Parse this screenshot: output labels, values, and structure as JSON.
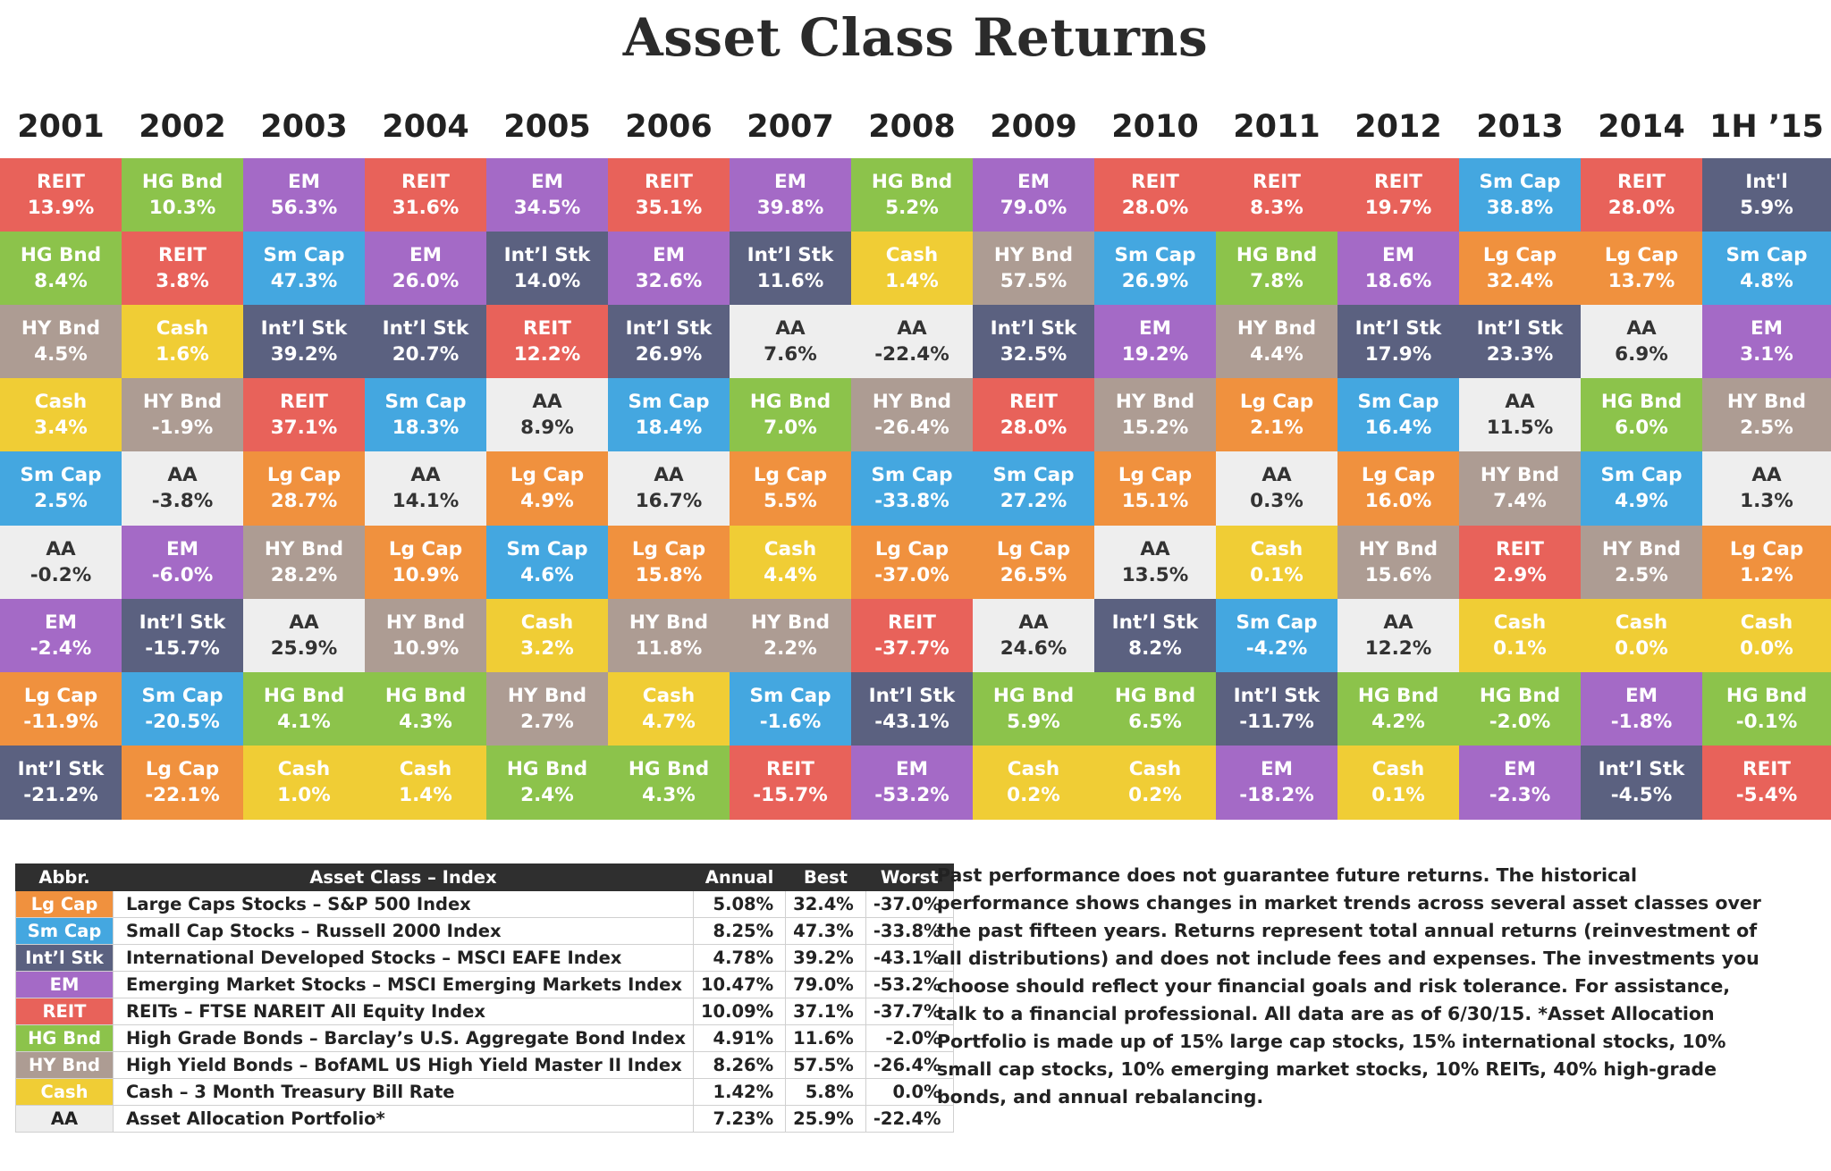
{
  "title": "Asset Class Returns",
  "years": [
    "2001",
    "2002",
    "2003",
    "2004",
    "2005",
    "2006",
    "2007",
    "2008",
    "2009",
    "2010",
    "2011",
    "2012",
    "2013",
    "2014",
    "1H ’15"
  ],
  "colors": {
    "REIT": "#e8625a",
    "HG Bnd": "#8cc34b",
    "EM": "#a46ac6",
    "Int'l": "#5b6180",
    "Int’l Stk": "#5b6180",
    "Sm Cap": "#44a7e0",
    "HY Bnd": "#ad9c93",
    "Cash": "#f0cd35",
    "AA": "#eeeeee",
    "Lg Cap": "#f0913e"
  },
  "chart_data": {
    "type": "table",
    "title": "Asset Class Returns",
    "columns": [
      {
        "year": "2001",
        "cells": [
          {
            "asset": "REIT",
            "value": "13.9%"
          },
          {
            "asset": "HG Bnd",
            "value": "8.4%"
          },
          {
            "asset": "HY Bnd",
            "value": "4.5%"
          },
          {
            "asset": "Cash",
            "value": "3.4%"
          },
          {
            "asset": "Sm Cap",
            "value": "2.5%"
          },
          {
            "asset": "AA",
            "value": "-0.2%"
          },
          {
            "asset": "EM",
            "value": "-2.4%"
          },
          {
            "asset": "Lg Cap",
            "value": "-11.9%"
          },
          {
            "asset": "Int’l Stk",
            "value": "-21.2%"
          }
        ]
      },
      {
        "year": "2002",
        "cells": [
          {
            "asset": "HG Bnd",
            "value": "10.3%"
          },
          {
            "asset": "REIT",
            "value": "3.8%"
          },
          {
            "asset": "Cash",
            "value": "1.6%"
          },
          {
            "asset": "HY Bnd",
            "value": "-1.9%"
          },
          {
            "asset": "AA",
            "value": "-3.8%"
          },
          {
            "asset": "EM",
            "value": "-6.0%"
          },
          {
            "asset": "Int’l Stk",
            "value": "-15.7%"
          },
          {
            "asset": "Sm Cap",
            "value": "-20.5%"
          },
          {
            "asset": "Lg Cap",
            "value": "-22.1%"
          }
        ]
      },
      {
        "year": "2003",
        "cells": [
          {
            "asset": "EM",
            "value": "56.3%"
          },
          {
            "asset": "Sm Cap",
            "value": "47.3%"
          },
          {
            "asset": "Int’l Stk",
            "value": "39.2%"
          },
          {
            "asset": "REIT",
            "value": "37.1%"
          },
          {
            "asset": "Lg Cap",
            "value": "28.7%"
          },
          {
            "asset": "HY Bnd",
            "value": "28.2%"
          },
          {
            "asset": "AA",
            "value": "25.9%"
          },
          {
            "asset": "HG Bnd",
            "value": "4.1%"
          },
          {
            "asset": "Cash",
            "value": "1.0%"
          }
        ]
      },
      {
        "year": "2004",
        "cells": [
          {
            "asset": "REIT",
            "value": "31.6%"
          },
          {
            "asset": "EM",
            "value": "26.0%"
          },
          {
            "asset": "Int’l Stk",
            "value": "20.7%"
          },
          {
            "asset": "Sm Cap",
            "value": "18.3%"
          },
          {
            "asset": "AA",
            "value": "14.1%"
          },
          {
            "asset": "Lg Cap",
            "value": "10.9%"
          },
          {
            "asset": "HY Bnd",
            "value": "10.9%"
          },
          {
            "asset": "HG Bnd",
            "value": "4.3%"
          },
          {
            "asset": "Cash",
            "value": "1.4%"
          }
        ]
      },
      {
        "year": "2005",
        "cells": [
          {
            "asset": "EM",
            "value": "34.5%"
          },
          {
            "asset": "Int’l Stk",
            "value": "14.0%"
          },
          {
            "asset": "REIT",
            "value": "12.2%"
          },
          {
            "asset": "AA",
            "value": "8.9%"
          },
          {
            "asset": "Lg Cap",
            "value": "4.9%"
          },
          {
            "asset": "Sm Cap",
            "value": "4.6%"
          },
          {
            "asset": "Cash",
            "value": "3.2%"
          },
          {
            "asset": "HY Bnd",
            "value": "2.7%"
          },
          {
            "asset": "HG Bnd",
            "value": "2.4%"
          }
        ]
      },
      {
        "year": "2006",
        "cells": [
          {
            "asset": "REIT",
            "value": "35.1%"
          },
          {
            "asset": "EM",
            "value": "32.6%"
          },
          {
            "asset": "Int’l Stk",
            "value": "26.9%"
          },
          {
            "asset": "Sm Cap",
            "value": "18.4%"
          },
          {
            "asset": "AA",
            "value": "16.7%"
          },
          {
            "asset": "Lg Cap",
            "value": "15.8%"
          },
          {
            "asset": "HY Bnd",
            "value": "11.8%"
          },
          {
            "asset": "Cash",
            "value": "4.7%"
          },
          {
            "asset": "HG Bnd",
            "value": "4.3%"
          }
        ]
      },
      {
        "year": "2007",
        "cells": [
          {
            "asset": "EM",
            "value": "39.8%"
          },
          {
            "asset": "Int’l Stk",
            "value": "11.6%"
          },
          {
            "asset": "AA",
            "value": "7.6%"
          },
          {
            "asset": "HG Bnd",
            "value": "7.0%"
          },
          {
            "asset": "Lg Cap",
            "value": "5.5%"
          },
          {
            "asset": "Cash",
            "value": "4.4%"
          },
          {
            "asset": "HY Bnd",
            "value": "2.2%"
          },
          {
            "asset": "Sm Cap",
            "value": "-1.6%"
          },
          {
            "asset": "REIT",
            "value": "-15.7%"
          }
        ]
      },
      {
        "year": "2008",
        "cells": [
          {
            "asset": "HG Bnd",
            "value": "5.2%"
          },
          {
            "asset": "Cash",
            "value": "1.4%"
          },
          {
            "asset": "AA",
            "value": "-22.4%"
          },
          {
            "asset": "HY Bnd",
            "value": "-26.4%"
          },
          {
            "asset": "Sm Cap",
            "value": "-33.8%"
          },
          {
            "asset": "Lg Cap",
            "value": "-37.0%"
          },
          {
            "asset": "REIT",
            "value": "-37.7%"
          },
          {
            "asset": "Int’l Stk",
            "value": "-43.1%"
          },
          {
            "asset": "EM",
            "value": "-53.2%"
          }
        ]
      },
      {
        "year": "2009",
        "cells": [
          {
            "asset": "EM",
            "value": "79.0%"
          },
          {
            "asset": "HY Bnd",
            "value": "57.5%"
          },
          {
            "asset": "Int’l Stk",
            "value": "32.5%"
          },
          {
            "asset": "REIT",
            "value": "28.0%"
          },
          {
            "asset": "Sm Cap",
            "value": "27.2%"
          },
          {
            "asset": "Lg Cap",
            "value": "26.5%"
          },
          {
            "asset": "AA",
            "value": "24.6%"
          },
          {
            "asset": "HG Bnd",
            "value": "5.9%"
          },
          {
            "asset": "Cash",
            "value": "0.2%"
          }
        ]
      },
      {
        "year": "2010",
        "cells": [
          {
            "asset": "REIT",
            "value": "28.0%"
          },
          {
            "asset": "Sm Cap",
            "value": "26.9%"
          },
          {
            "asset": "EM",
            "value": "19.2%"
          },
          {
            "asset": "HY Bnd",
            "value": "15.2%"
          },
          {
            "asset": "Lg Cap",
            "value": "15.1%"
          },
          {
            "asset": "AA",
            "value": "13.5%"
          },
          {
            "asset": "Int’l Stk",
            "value": "8.2%"
          },
          {
            "asset": "HG Bnd",
            "value": "6.5%"
          },
          {
            "asset": "Cash",
            "value": "0.2%"
          }
        ]
      },
      {
        "year": "2011",
        "cells": [
          {
            "asset": "REIT",
            "value": "8.3%"
          },
          {
            "asset": "HG Bnd",
            "value": "7.8%"
          },
          {
            "asset": "HY Bnd",
            "value": "4.4%"
          },
          {
            "asset": "Lg Cap",
            "value": "2.1%"
          },
          {
            "asset": "AA",
            "value": "0.3%"
          },
          {
            "asset": "Cash",
            "value": "0.1%"
          },
          {
            "asset": "Sm Cap",
            "value": "-4.2%"
          },
          {
            "asset": "Int’l Stk",
            "value": "-11.7%"
          },
          {
            "asset": "EM",
            "value": "-18.2%"
          }
        ]
      },
      {
        "year": "2012",
        "cells": [
          {
            "asset": "REIT",
            "value": "19.7%"
          },
          {
            "asset": "EM",
            "value": "18.6%"
          },
          {
            "asset": "Int’l Stk",
            "value": "17.9%"
          },
          {
            "asset": "Sm Cap",
            "value": "16.4%"
          },
          {
            "asset": "Lg Cap",
            "value": "16.0%"
          },
          {
            "asset": "HY Bnd",
            "value": "15.6%"
          },
          {
            "asset": "AA",
            "value": "12.2%"
          },
          {
            "asset": "HG Bnd",
            "value": "4.2%"
          },
          {
            "asset": "Cash",
            "value": "0.1%"
          }
        ]
      },
      {
        "year": "2013",
        "cells": [
          {
            "asset": "Sm Cap",
            "value": "38.8%"
          },
          {
            "asset": "Lg Cap",
            "value": "32.4%"
          },
          {
            "asset": "Int’l Stk",
            "value": "23.3%"
          },
          {
            "asset": "AA",
            "value": "11.5%"
          },
          {
            "asset": "HY Bnd",
            "value": "7.4%"
          },
          {
            "asset": "REIT",
            "value": "2.9%"
          },
          {
            "asset": "Cash",
            "value": "0.1%"
          },
          {
            "asset": "HG Bnd",
            "value": "-2.0%"
          },
          {
            "asset": "EM",
            "value": "-2.3%"
          }
        ]
      },
      {
        "year": "2014",
        "cells": [
          {
            "asset": "REIT",
            "value": "28.0%"
          },
          {
            "asset": "Lg Cap",
            "value": "13.7%"
          },
          {
            "asset": "AA",
            "value": "6.9%"
          },
          {
            "asset": "HG Bnd",
            "value": "6.0%"
          },
          {
            "asset": "Sm Cap",
            "value": "4.9%"
          },
          {
            "asset": "HY Bnd",
            "value": "2.5%"
          },
          {
            "asset": "Cash",
            "value": "0.0%"
          },
          {
            "asset": "EM",
            "value": "-1.8%"
          },
          {
            "asset": "Int’l Stk",
            "value": "-4.5%"
          }
        ]
      },
      {
        "year": "1H ’15",
        "cells": [
          {
            "asset": "Int'l",
            "value": "5.9%"
          },
          {
            "asset": "Sm Cap",
            "value": "4.8%"
          },
          {
            "asset": "EM",
            "value": "3.1%"
          },
          {
            "asset": "HY Bnd",
            "value": "2.5%"
          },
          {
            "asset": "AA",
            "value": "1.3%"
          },
          {
            "asset": "Lg Cap",
            "value": "1.2%"
          },
          {
            "asset": "Cash",
            "value": "0.0%"
          },
          {
            "asset": "HG Bnd",
            "value": "-0.1%"
          },
          {
            "asset": "REIT",
            "value": "-5.4%"
          }
        ]
      }
    ]
  },
  "legend": {
    "headers": {
      "abbr": "Abbr.",
      "asset_class": "Asset Class – Index",
      "annual": "Annual",
      "best": "Best",
      "worst": "Worst"
    },
    "rows": [
      {
        "abbr": "Lg Cap",
        "name": "Large Caps Stocks – S&P 500 Index",
        "annual": "5.08%",
        "best": "32.4%",
        "worst": "-37.0%"
      },
      {
        "abbr": "Sm Cap",
        "name": "Small Cap Stocks – Russell 2000 Index",
        "annual": "8.25%",
        "best": "47.3%",
        "worst": "-33.8%"
      },
      {
        "abbr": "Int’l Stk",
        "name": "International Developed Stocks – MSCI EAFE Index",
        "annual": "4.78%",
        "best": "39.2%",
        "worst": "-43.1%"
      },
      {
        "abbr": "EM",
        "name": "Emerging Market Stocks – MSCI Emerging Markets Index",
        "annual": "10.47%",
        "best": "79.0%",
        "worst": "-53.2%"
      },
      {
        "abbr": "REIT",
        "name": "REITs – FTSE NAREIT All Equity Index",
        "annual": "10.09%",
        "best": "37.1%",
        "worst": "-37.7%"
      },
      {
        "abbr": "HG Bnd",
        "name": "High Grade Bonds – Barclay’s U.S. Aggregate Bond Index",
        "annual": "4.91%",
        "best": "11.6%",
        "worst": "-2.0%"
      },
      {
        "abbr": "HY Bnd",
        "name": "High Yield Bonds – BofAML US High Yield Master II Index",
        "annual": "8.26%",
        "best": "57.5%",
        "worst": "-26.4%"
      },
      {
        "abbr": "Cash",
        "name": "Cash – 3 Month Treasury Bill Rate",
        "annual": "1.42%",
        "best": "5.8%",
        "worst": "0.0%"
      },
      {
        "abbr": "AA",
        "name": "Asset Allocation Portfolio*",
        "annual": "7.23%",
        "best": "25.9%",
        "worst": "-22.4%"
      }
    ]
  },
  "disclaimer": "Past performance does not guarantee future returns. The historical performance shows changes in market trends across several asset classes over the past fifteen years. Returns represent total annual returns (reinvestment of all distributions) and does not include fees and expenses. The investments you choose should reflect your financial goals and risk tolerance. For assistance, talk to a financial professional. All data are as of 6/30/15. *Asset Allocation Portfolio is made up of 15% large cap stocks, 15% international stocks, 10% small cap stocks, 10% emerging market stocks, 10% REITs, 40% high-grade bonds, and annual rebalancing."
}
